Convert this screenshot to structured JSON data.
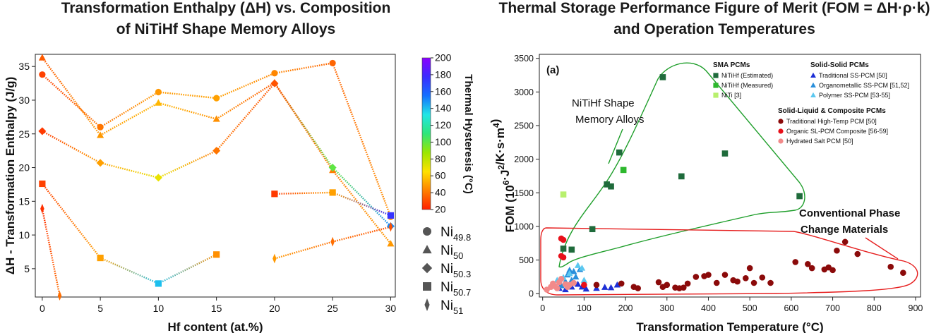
{
  "colors": {
    "hysteresis_scale": [
      "#ff1f00",
      "#ff8000",
      "#ffe100",
      "#9be600",
      "#2ee67a",
      "#20e6e6",
      "#1470ff",
      "#3a2cff",
      "#8b00ff"
    ],
    "sma_estimated": "#1f6b3b",
    "sma_measured": "#2db82d",
    "sma_niti": "#b8f06e",
    "ss_traditional": "#1d2fd6",
    "ss_organometallic": "#2a8fdb",
    "ss_polymer": "#5cc8f0",
    "sl_traditional": "#8b0a0a",
    "sl_organic": "#e8101a",
    "sl_hydrated": "#f28a8a",
    "region_sma": "#1e9e2a",
    "region_conventional": "#e61e1e"
  },
  "chart_data": [
    {
      "type": "scatter",
      "title": [
        "Transformation Enthalpy (ΔH) vs. Composition",
        "of NiTiHf Shape Memory Alloys"
      ],
      "xlabel": "Hf content (at.%)",
      "ylabel": "ΔH - Transformation Enthalpy (J/g)",
      "xlim": [
        -0.6,
        30.4
      ],
      "ylim": [
        0.8,
        36.8
      ],
      "xticks": [
        0,
        5,
        10,
        15,
        20,
        25,
        30
      ],
      "yticks": [
        5,
        10,
        15,
        20,
        25,
        30,
        35
      ],
      "grid": false,
      "colorbar": {
        "label": "Thermal Hysteresis (°C)",
        "range": [
          20,
          200
        ],
        "ticks": [
          20,
          40,
          60,
          80,
          100,
          120,
          140,
          160,
          180,
          200
        ]
      },
      "legend": {
        "placement": "right",
        "entries": [
          {
            "marker": "circle",
            "base": "Ni",
            "sub": "49.8"
          },
          {
            "marker": "triangle",
            "base": "Ni",
            "sub": "50"
          },
          {
            "marker": "diamond",
            "base": "Ni",
            "sub": "50.3"
          },
          {
            "marker": "square",
            "base": "Ni",
            "sub": "50.7"
          },
          {
            "marker": "thin-diamond",
            "base": "Ni",
            "sub": "51"
          }
        ]
      },
      "series": [
        {
          "marker": "circle",
          "segments": [
            [
              [
                0,
                33.8,
                28
              ],
              [
                5,
                26,
                40
              ],
              [
                10,
                31.2,
                48
              ],
              [
                15,
                30.3,
                50
              ],
              [
                20,
                34,
                44
              ],
              [
                25,
                35.5,
                36
              ],
              [
                30,
                12.7,
                46
              ]
            ]
          ]
        },
        {
          "marker": "triangle",
          "segments": [
            [
              [
                0,
                36.3,
                34
              ],
              [
                5,
                24.8,
                48
              ],
              [
                10,
                29.6,
                55
              ],
              [
                15,
                27.2,
                46
              ],
              [
                20,
                32.6,
                34
              ],
              [
                25,
                19.6,
                42
              ],
              [
                30,
                8.7,
                48
              ]
            ]
          ]
        },
        {
          "marker": "diamond",
          "segments": [
            [
              [
                0,
                25.4,
                26
              ],
              [
                5,
                20.7,
                50
              ],
              [
                10,
                18.5,
                70
              ],
              [
                15,
                22.5,
                40
              ],
              [
                20,
                32.5,
                32
              ],
              [
                25,
                20,
                100
              ],
              [
                30,
                11.3,
                150
              ]
            ]
          ]
        },
        {
          "marker": "square",
          "segments": [
            [
              [
                0,
                17.6,
                28
              ],
              [
                5,
                6.6,
                50
              ],
              [
                10,
                2.8,
                140
              ],
              [
                15,
                7.1,
                46
              ]
            ],
            [
              [
                20,
                16.1,
                26
              ],
              [
                25,
                16.3,
                50
              ],
              [
                30,
                12.9,
                175
              ]
            ]
          ]
        },
        {
          "marker": "thin-diamond",
          "segments": [
            [
              [
                0,
                13.9,
                24
              ],
              [
                1.5,
                1,
                38
              ]
            ],
            [
              [
                20,
                6.5,
                48
              ],
              [
                25,
                9,
                38
              ],
              [
                30,
                11.2,
                32
              ]
            ]
          ]
        }
      ]
    },
    {
      "type": "scatter",
      "title": [
        "Thermal Storage Performance Figure of Merit (FOM = ΔH·ρ·k)",
        "and Operation Temperatures"
      ],
      "panel_label": "(a)",
      "xlabel": "Transformation Temperature (°C)",
      "ylabel": "FOM (10⁶·J²/K·s·m⁴)",
      "xlim": [
        -8,
        912
      ],
      "ylim": [
        -50,
        3560
      ],
      "xticks": [
        0,
        100,
        200,
        300,
        400,
        500,
        600,
        700,
        800,
        900
      ],
      "yticks": [
        0,
        500,
        1000,
        1500,
        2000,
        2500,
        3000,
        3500
      ],
      "grid": false,
      "legend": {
        "placement": "top-right",
        "groups": [
          {
            "title": "SMA PCMs",
            "entries": [
              {
                "label": "NiTiHf (Estimated)",
                "marker": "square",
                "color": "sma_estimated"
              },
              {
                "label": "NiTiHf (Measured)",
                "marker": "square",
                "color": "sma_measured"
              },
              {
                "label": "NiTi [3]",
                "marker": "square",
                "color": "sma_niti"
              }
            ]
          },
          {
            "title": "Solid-Solid PCMs",
            "entries": [
              {
                "label": "Traditional SS-PCM [50]",
                "marker": "triangle",
                "color": "ss_traditional"
              },
              {
                "label": "Organometallic SS-PCM [51,52]",
                "marker": "triangle",
                "color": "ss_organometallic"
              },
              {
                "label": "Polymer SS-PCM [53-55]",
                "marker": "triangle",
                "color": "ss_polymer"
              }
            ]
          },
          {
            "title": "Solid-Liquid & Composite PCMs",
            "entries": [
              {
                "label": "Traditional High-Temp PCM [50]",
                "marker": "circle",
                "color": "sl_traditional"
              },
              {
                "label": "Organic SL-PCM Composite [56-59]",
                "marker": "circle",
                "color": "sl_organic"
              },
              {
                "label": "Hydrated Salt PCM [50]",
                "marker": "circle",
                "color": "sl_hydrated"
              }
            ]
          }
        ]
      },
      "annotations": [
        {
          "text": [
            "NiTiHf Shape",
            "Memory Alloys"
          ]
        },
        {
          "text": [
            "Conventional Phase",
            "Change Materials"
          ]
        }
      ],
      "series": [
        {
          "color": "sma_estimated",
          "marker": "square",
          "points": [
            [
              290,
              3220
            ],
            [
              185,
              2100
            ],
            [
              440,
              2085
            ],
            [
              335,
              1745
            ],
            [
              155,
              1625
            ],
            [
              165,
              1595
            ],
            [
              620,
              1450
            ],
            [
              120,
              960
            ],
            [
              50,
              670
            ],
            [
              70,
              655
            ]
          ]
        },
        {
          "color": "sma_measured",
          "marker": "square",
          "points": [
            [
              195,
              1840
            ]
          ]
        },
        {
          "color": "sma_niti",
          "marker": "square",
          "points": [
            [
              50,
              1475
            ]
          ]
        },
        {
          "color": "ss_traditional",
          "marker": "triangle",
          "points": [
            [
              25,
              140
            ],
            [
              40,
              80
            ],
            [
              55,
              60
            ],
            [
              70,
              100
            ],
            [
              85,
              140
            ],
            [
              95,
              100
            ],
            [
              105,
              70
            ],
            [
              130,
              80
            ],
            [
              150,
              95
            ],
            [
              165,
              90
            ],
            [
              180,
              130
            ]
          ]
        },
        {
          "color": "ss_organometallic",
          "marker": "triangle",
          "points": [
            [
              45,
              120
            ],
            [
              55,
              180
            ],
            [
              60,
              280
            ],
            [
              65,
              350
            ],
            [
              75,
              330
            ],
            [
              80,
              250
            ],
            [
              90,
              360
            ],
            [
              70,
              200
            ]
          ]
        },
        {
          "color": "ss_polymer",
          "marker": "triangle",
          "points": [
            [
              35,
              200
            ],
            [
              50,
              240
            ],
            [
              65,
              300
            ],
            [
              85,
              420
            ],
            [
              95,
              380
            ],
            [
              100,
              200
            ]
          ]
        },
        {
          "color": "sl_traditional",
          "marker": "circle",
          "points": [
            [
              130,
              130
            ],
            [
              190,
              150
            ],
            [
              220,
              100
            ],
            [
              230,
              80
            ],
            [
              280,
              170
            ],
            [
              290,
              100
            ],
            [
              300,
              130
            ],
            [
              320,
              90
            ],
            [
              330,
              80
            ],
            [
              340,
              90
            ],
            [
              350,
              150
            ],
            [
              370,
              250
            ],
            [
              390,
              260
            ],
            [
              400,
              280
            ],
            [
              420,
              160
            ],
            [
              440,
              280
            ],
            [
              460,
              200
            ],
            [
              470,
              180
            ],
            [
              490,
              230
            ],
            [
              500,
              380
            ],
            [
              510,
              160
            ],
            [
              530,
              240
            ],
            [
              550,
              160
            ],
            [
              610,
              470
            ],
            [
              640,
              440
            ],
            [
              650,
              380
            ],
            [
              680,
              360
            ],
            [
              690,
              390
            ],
            [
              700,
              350
            ],
            [
              710,
              640
            ],
            [
              730,
              770
            ],
            [
              760,
              590
            ],
            [
              840,
              400
            ],
            [
              870,
              310
            ]
          ]
        },
        {
          "color": "sl_organic",
          "marker": "circle",
          "points": [
            [
              45,
              820
            ],
            [
              50,
              800
            ],
            [
              45,
              560
            ],
            [
              50,
              540
            ],
            [
              100,
              130
            ]
          ]
        },
        {
          "color": "sl_hydrated",
          "marker": "circle",
          "points": [
            [
              10,
              60
            ],
            [
              20,
              100
            ],
            [
              25,
              150
            ],
            [
              30,
              110
            ],
            [
              40,
              170
            ],
            [
              45,
              220
            ],
            [
              55,
              140
            ],
            [
              60,
              100
            ],
            [
              65,
              130
            ],
            [
              75,
              160
            ],
            [
              35,
              80
            ]
          ]
        }
      ]
    }
  ]
}
